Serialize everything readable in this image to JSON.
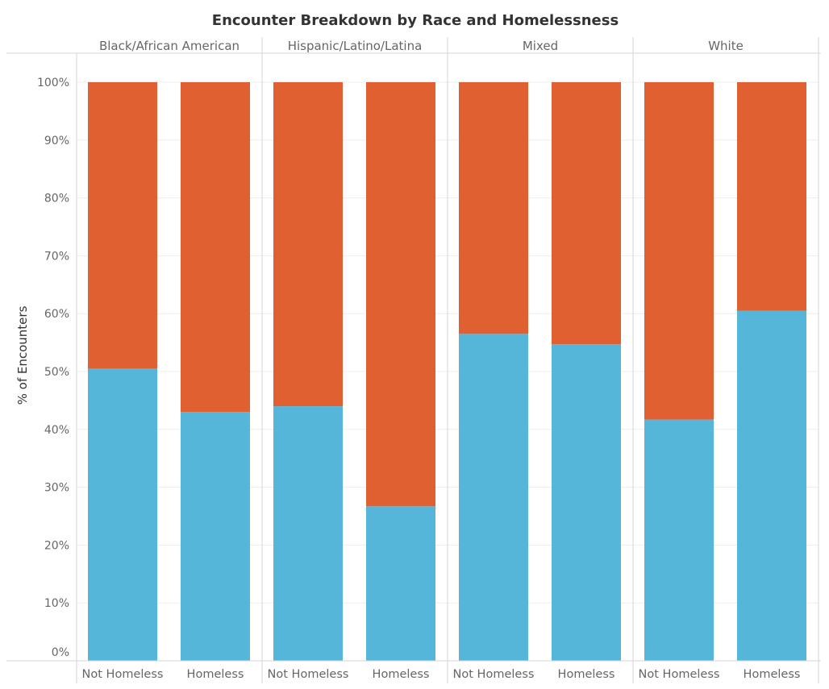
{
  "chart_data": {
    "type": "bar",
    "stacked": true,
    "normalized": true,
    "title": "Encounter Breakdown by Race and Homelessness",
    "ylabel": "% of Encounters",
    "ylim": [
      0,
      100
    ],
    "y_ticks": [
      "0%",
      "10%",
      "20%",
      "30%",
      "40%",
      "50%",
      "60%",
      "70%",
      "80%",
      "90%",
      "100%"
    ],
    "grid": true,
    "colors": {
      "lower": "#55b6d9",
      "upper": "#e06032"
    },
    "panels": [
      {
        "label": "Black/African American",
        "categories": [
          "Not Homeless",
          "Homeless"
        ],
        "lower_values": [
          50.5,
          43.0
        ],
        "upper_values": [
          49.5,
          57.0
        ]
      },
      {
        "label": "Hispanic/Latino/Latina",
        "categories": [
          "Not Homeless",
          "Homeless"
        ],
        "lower_values": [
          44.0,
          26.7
        ],
        "upper_values": [
          56.0,
          73.3
        ]
      },
      {
        "label": "Mixed",
        "categories": [
          "Not Homeless",
          "Homeless"
        ],
        "lower_values": [
          56.5,
          54.7
        ],
        "upper_values": [
          43.5,
          45.3
        ]
      },
      {
        "label": "White",
        "categories": [
          "Not Homeless",
          "Homeless"
        ],
        "lower_values": [
          41.7,
          60.5
        ],
        "upper_values": [
          58.3,
          39.5
        ]
      }
    ]
  }
}
